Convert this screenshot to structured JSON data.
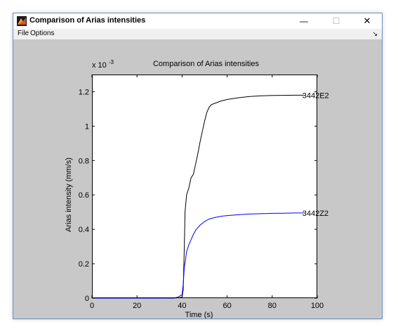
{
  "window": {
    "title": "Comparison of Arias intensities",
    "minimize_glyph": "—",
    "maximize_glyph": "☐",
    "close_glyph": "✕"
  },
  "menu": {
    "file": "File",
    "options": "Options",
    "dock_glyph": "↘"
  },
  "colors": {
    "figure_bg": "#c8c8c8",
    "axes_bg": "#ffffff",
    "series_3442E2": "#000000",
    "series_3442Z2": "#0000ff"
  },
  "chart_data": {
    "type": "line",
    "title": "Comparison of Arias intensities",
    "xlabel": "Time (s)",
    "ylabel": "Arias intensity (mm/s)",
    "y_exponent_label": "x 10",
    "y_exponent_power": "-3",
    "xlim": [
      0,
      100
    ],
    "ylim": [
      0,
      1.3
    ],
    "x_ticks": [
      0,
      20,
      40,
      60,
      80,
      100
    ],
    "x_tick_labels": [
      "0",
      "20",
      "40",
      "60",
      "80",
      "100"
    ],
    "y_ticks": [
      0,
      0.2,
      0.4,
      0.6,
      0.8,
      1.0,
      1.2
    ],
    "y_tick_labels": [
      "0",
      "0.2",
      "0.4",
      "0.6",
      "0.8",
      "1",
      "1.2"
    ],
    "grid": false,
    "series": [
      {
        "name": "3442E2",
        "color": "#000000",
        "x": [
          0,
          20,
          36,
          38,
          40,
          40.5,
          41,
          41.3,
          42,
          43,
          44,
          45,
          46,
          47,
          48,
          49,
          50,
          51,
          52,
          53,
          55,
          57,
          60,
          65,
          70,
          75,
          80,
          85,
          90,
          94
        ],
        "y": [
          0,
          0,
          0,
          0.002,
          0.005,
          0.05,
          0.3,
          0.5,
          0.6,
          0.64,
          0.7,
          0.72,
          0.78,
          0.84,
          0.91,
          0.97,
          1.03,
          1.08,
          1.11,
          1.125,
          1.135,
          1.145,
          1.155,
          1.165,
          1.172,
          1.176,
          1.178,
          1.179,
          1.18,
          1.18
        ]
      },
      {
        "name": "3442Z2",
        "color": "#0000ff",
        "x": [
          0,
          20,
          36,
          38,
          40,
          40.5,
          41,
          41.5,
          42,
          43,
          44,
          45,
          46,
          47,
          48,
          50,
          52,
          55,
          58,
          62,
          66,
          70,
          75,
          80,
          85,
          90,
          94
        ],
        "y": [
          0,
          0,
          0,
          0.005,
          0.02,
          0.08,
          0.18,
          0.22,
          0.27,
          0.31,
          0.34,
          0.37,
          0.395,
          0.41,
          0.425,
          0.445,
          0.46,
          0.47,
          0.477,
          0.482,
          0.486,
          0.489,
          0.491,
          0.493,
          0.494,
          0.495,
          0.495
        ]
      }
    ],
    "annotations": [
      {
        "text": "3442E2",
        "x": 94,
        "y": 1.18
      },
      {
        "text": "3442Z2",
        "x": 94,
        "y": 0.495
      }
    ]
  }
}
